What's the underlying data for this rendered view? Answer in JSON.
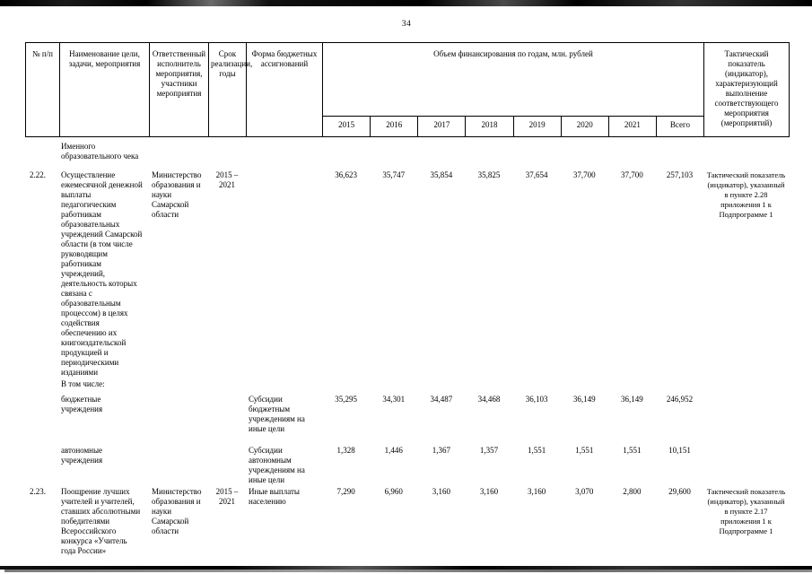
{
  "page": {
    "number": "34"
  },
  "table": {
    "header": {
      "num": "№ п/п",
      "name": "Наименование цели, задачи, мероприятия",
      "executor": "Ответственный исполнитель мероприятия, участники мероприятия",
      "period": "Срок реализации, годы",
      "budget_form": "Форма бюджетных ассигнований",
      "financing_group": "Объем финансирования по годам, млн. рублей",
      "years": [
        "2015",
        "2016",
        "2017",
        "2018",
        "2019",
        "2020",
        "2021",
        "Всего"
      ],
      "indicator": "Тактический показатель (индикатор), характеризующий выполнение соответствующего мероприятия (мероприятий)"
    },
    "rows": [
      {
        "name": "Именного образовательного чека"
      },
      {
        "num": "2.22.",
        "name": "Осуществление ежемесячной денежной выплаты педагогическим работникам образовательных учреждений Самарской области (в том числе руководящим работникам учреждений, деятельность которых связана с образовательным процессом) в целях содействия обеспечению их книгоиздательской продукцией и периодическими изданиями",
        "executor": "Министерство образования и науки Самарской области",
        "period": "2015 – 2021",
        "values": [
          "36,623",
          "35,747",
          "35,854",
          "35,825",
          "37,654",
          "37,700",
          "37,700",
          "257,103"
        ],
        "indicator": "Тактический показатель (индикатор), указанный в пункте 2.28 приложения 1 к Подпрограмме 1"
      },
      {
        "name": "В том числе:"
      },
      {
        "name": "бюджетные учреждения",
        "budget_form": "Субсидии бюджетным учреждениям на иные цели",
        "values": [
          "35,295",
          "34,301",
          "34,487",
          "34,468",
          "36,103",
          "36,149",
          "36,149",
          "246,952"
        ]
      },
      {
        "name": "автономные учреждения",
        "budget_form": "Субсидии автономным учреждениям на иные цели",
        "values": [
          "1,328",
          "1,446",
          "1,367",
          "1,357",
          "1,551",
          "1,551",
          "1,551",
          "10,151"
        ]
      },
      {
        "num": "2.23.",
        "name": "Поощрение лучших учителей и учителей, ставших абсолютными победителями Всероссийского конкурса «Учитель года России»",
        "executor": "Министерство образования и науки Самарской области",
        "period": "2015 – 2021",
        "budget_form": "Иные выплаты населению",
        "values": [
          "7,290",
          "6,960",
          "3,160",
          "3,160",
          "3,160",
          "3,070",
          "2,800",
          "29,600"
        ],
        "indicator": "Тактический показатель (индикатор), указанный в пункте 2.17 приложения 1 к Подпрограмме 1"
      }
    ]
  }
}
